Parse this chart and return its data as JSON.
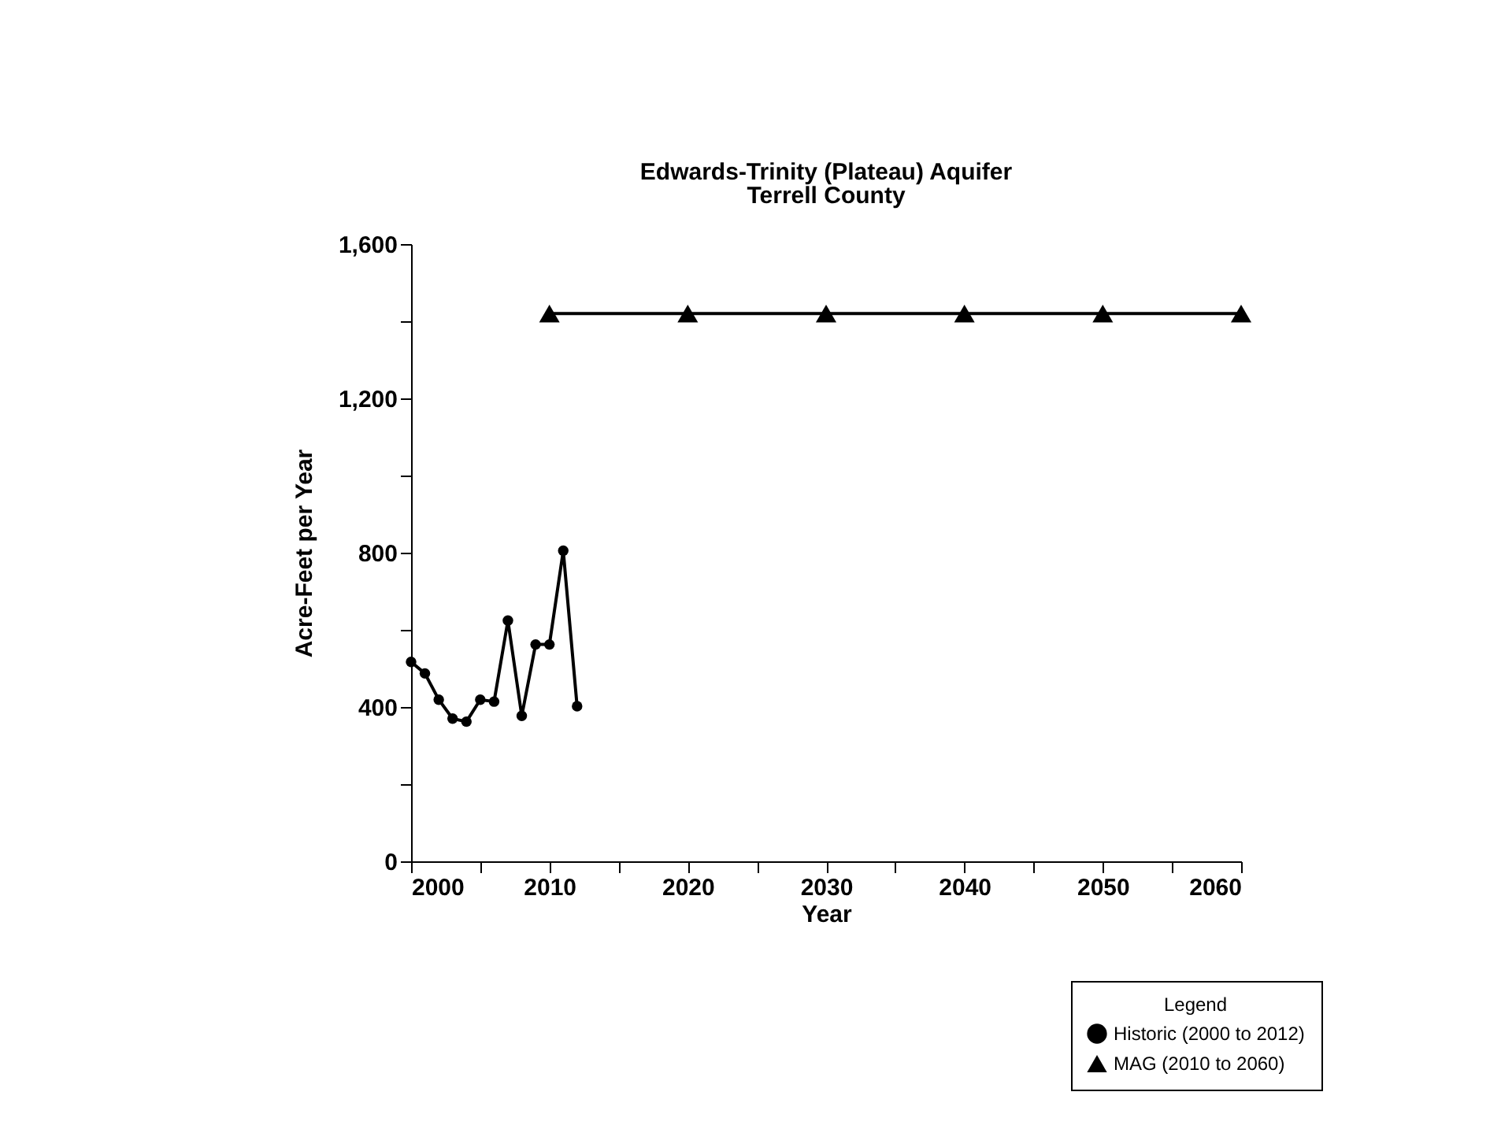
{
  "chart_data": {
    "type": "line",
    "title": "Edwards-Trinity (Plateau) Aquifer",
    "subtitle": "Terrell County",
    "xlabel": "Year",
    "ylabel": "Acre-Feet per Year",
    "legend_title": "Legend",
    "series": [
      {
        "name": "Historic (2000 to 2012)",
        "color": "#000000",
        "marker": "circle",
        "x": [
          2000,
          2001,
          2002,
          2003,
          2004,
          2005,
          2006,
          2007,
          2008,
          2009,
          2010,
          2011,
          2012
        ],
        "values": [
          517,
          487,
          419,
          370,
          362,
          419,
          414,
          624,
          377,
          562,
          562,
          805,
          402
        ]
      },
      {
        "name": "MAG (2010 to 2060)",
        "color": "#000000",
        "marker": "triangle",
        "x": [
          2010,
          2020,
          2030,
          2040,
          2050,
          2060
        ],
        "values": [
          1420,
          1420,
          1420,
          1420,
          1420,
          1420
        ]
      }
    ],
    "xlim": [
      2000,
      2060
    ],
    "ylim": [
      0,
      1600
    ],
    "xticks": [
      2000,
      {
        "value": 2005,
        "label": null
      },
      2010,
      {
        "value": 2015,
        "label": null
      },
      2020,
      {
        "value": 2025,
        "label": null
      },
      2030,
      {
        "value": 2035,
        "label": null
      },
      2040,
      {
        "value": 2045,
        "label": null
      },
      2050,
      {
        "value": 2055,
        "label": null
      },
      2060
    ],
    "yticks": [
      0,
      {
        "value": 200,
        "label": null
      },
      400,
      {
        "value": 600,
        "label": null
      },
      800,
      {
        "value": 1000,
        "label": null
      },
      {
        "value": 1200,
        "label": "1,200"
      },
      {
        "value": 1400,
        "label": null
      },
      {
        "value": 1600,
        "label": "1,600"
      }
    ],
    "grid": false,
    "legend": "bottom right",
    "line_style": "solid"
  }
}
